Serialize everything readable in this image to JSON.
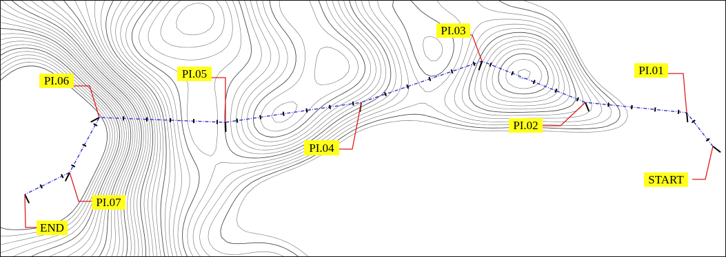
{
  "map": {
    "colors": {
      "background": "#ffffff",
      "contour": "#6e6e6e",
      "contour_index": "#4a4a4a",
      "alignment": "#2f2fd0",
      "leader": "#e01818",
      "label_bg": "#ffff1a",
      "tick": "#000000"
    },
    "labels": {
      "start": "START",
      "pi01": "PI.01",
      "pi02": "PI.02",
      "pi03": "PI.03",
      "pi04": "PI.04",
      "pi05": "PI.05",
      "pi06": "PI.06",
      "pi07": "PI.07",
      "end": "END"
    }
  }
}
